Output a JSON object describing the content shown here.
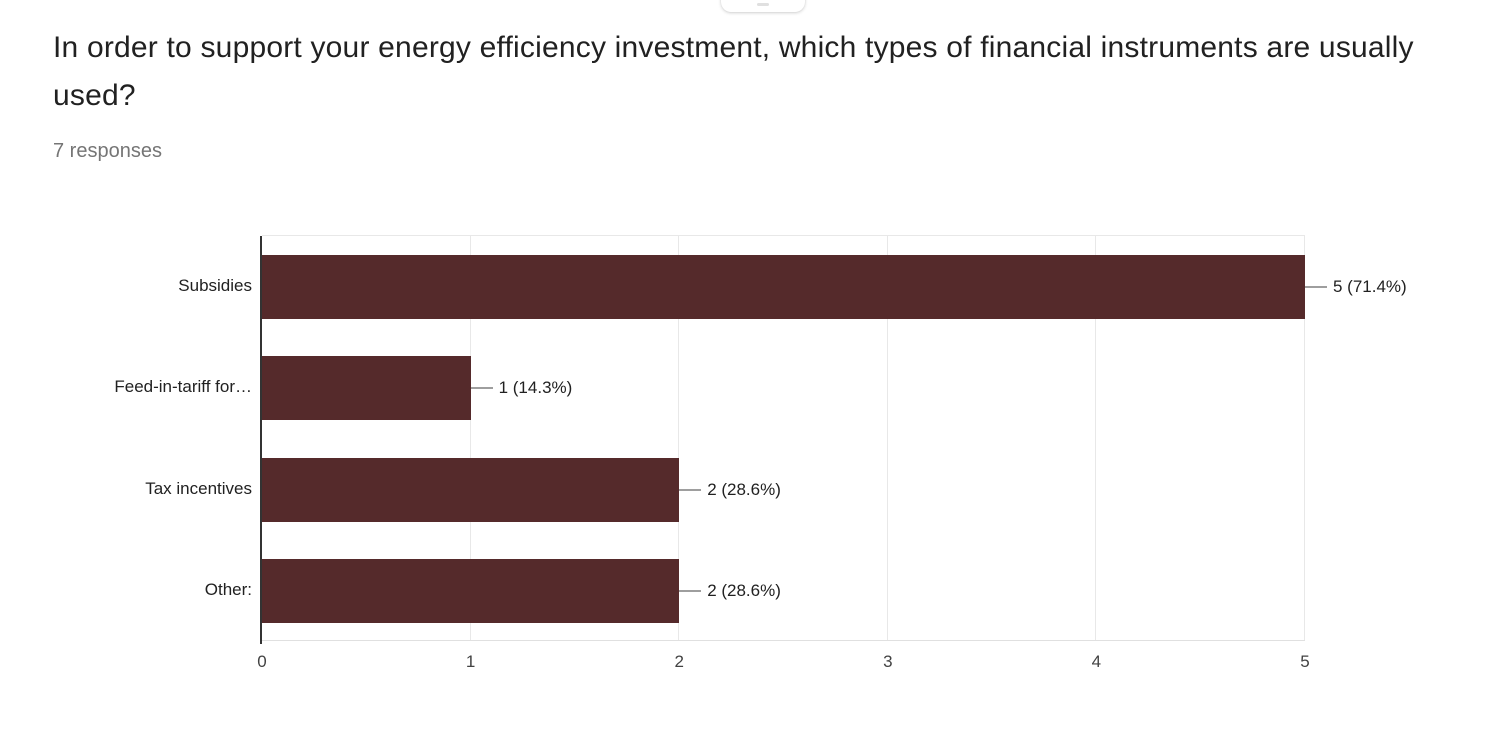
{
  "question": {
    "title": "In order to support your energy efficiency investment, which types of financial instruments are usually used?",
    "responses_label": "7 responses"
  },
  "chart_data": {
    "type": "bar",
    "orientation": "horizontal",
    "title": "In order to support your energy efficiency investment, which types of financial instruments are usually used?",
    "subtitle": "7 responses",
    "categories": [
      "Subsidies",
      "Feed-in-tariff for…",
      "Tax incentives",
      "Other:"
    ],
    "values": [
      5,
      1,
      2,
      2
    ],
    "percentages": [
      71.4,
      14.3,
      28.6,
      28.6
    ],
    "value_labels": [
      "5 (71.4%)",
      "1 (14.3%)",
      "2 (28.6%)",
      "2 (28.6%)"
    ],
    "total_responses": 7,
    "x_ticks": [
      "0",
      "1",
      "2",
      "3",
      "4",
      "5"
    ],
    "xlim": [
      0,
      5
    ],
    "grid": true,
    "legend": "none",
    "bar_color": "#552a2b"
  },
  "colors": {
    "bar": "#552a2b",
    "axis_line": "#333333",
    "gridline": "#e8e8e8",
    "title_text": "#212121",
    "subtitle_text": "#757575",
    "tick_text": "#424242",
    "connector": "#9e9e9e"
  }
}
